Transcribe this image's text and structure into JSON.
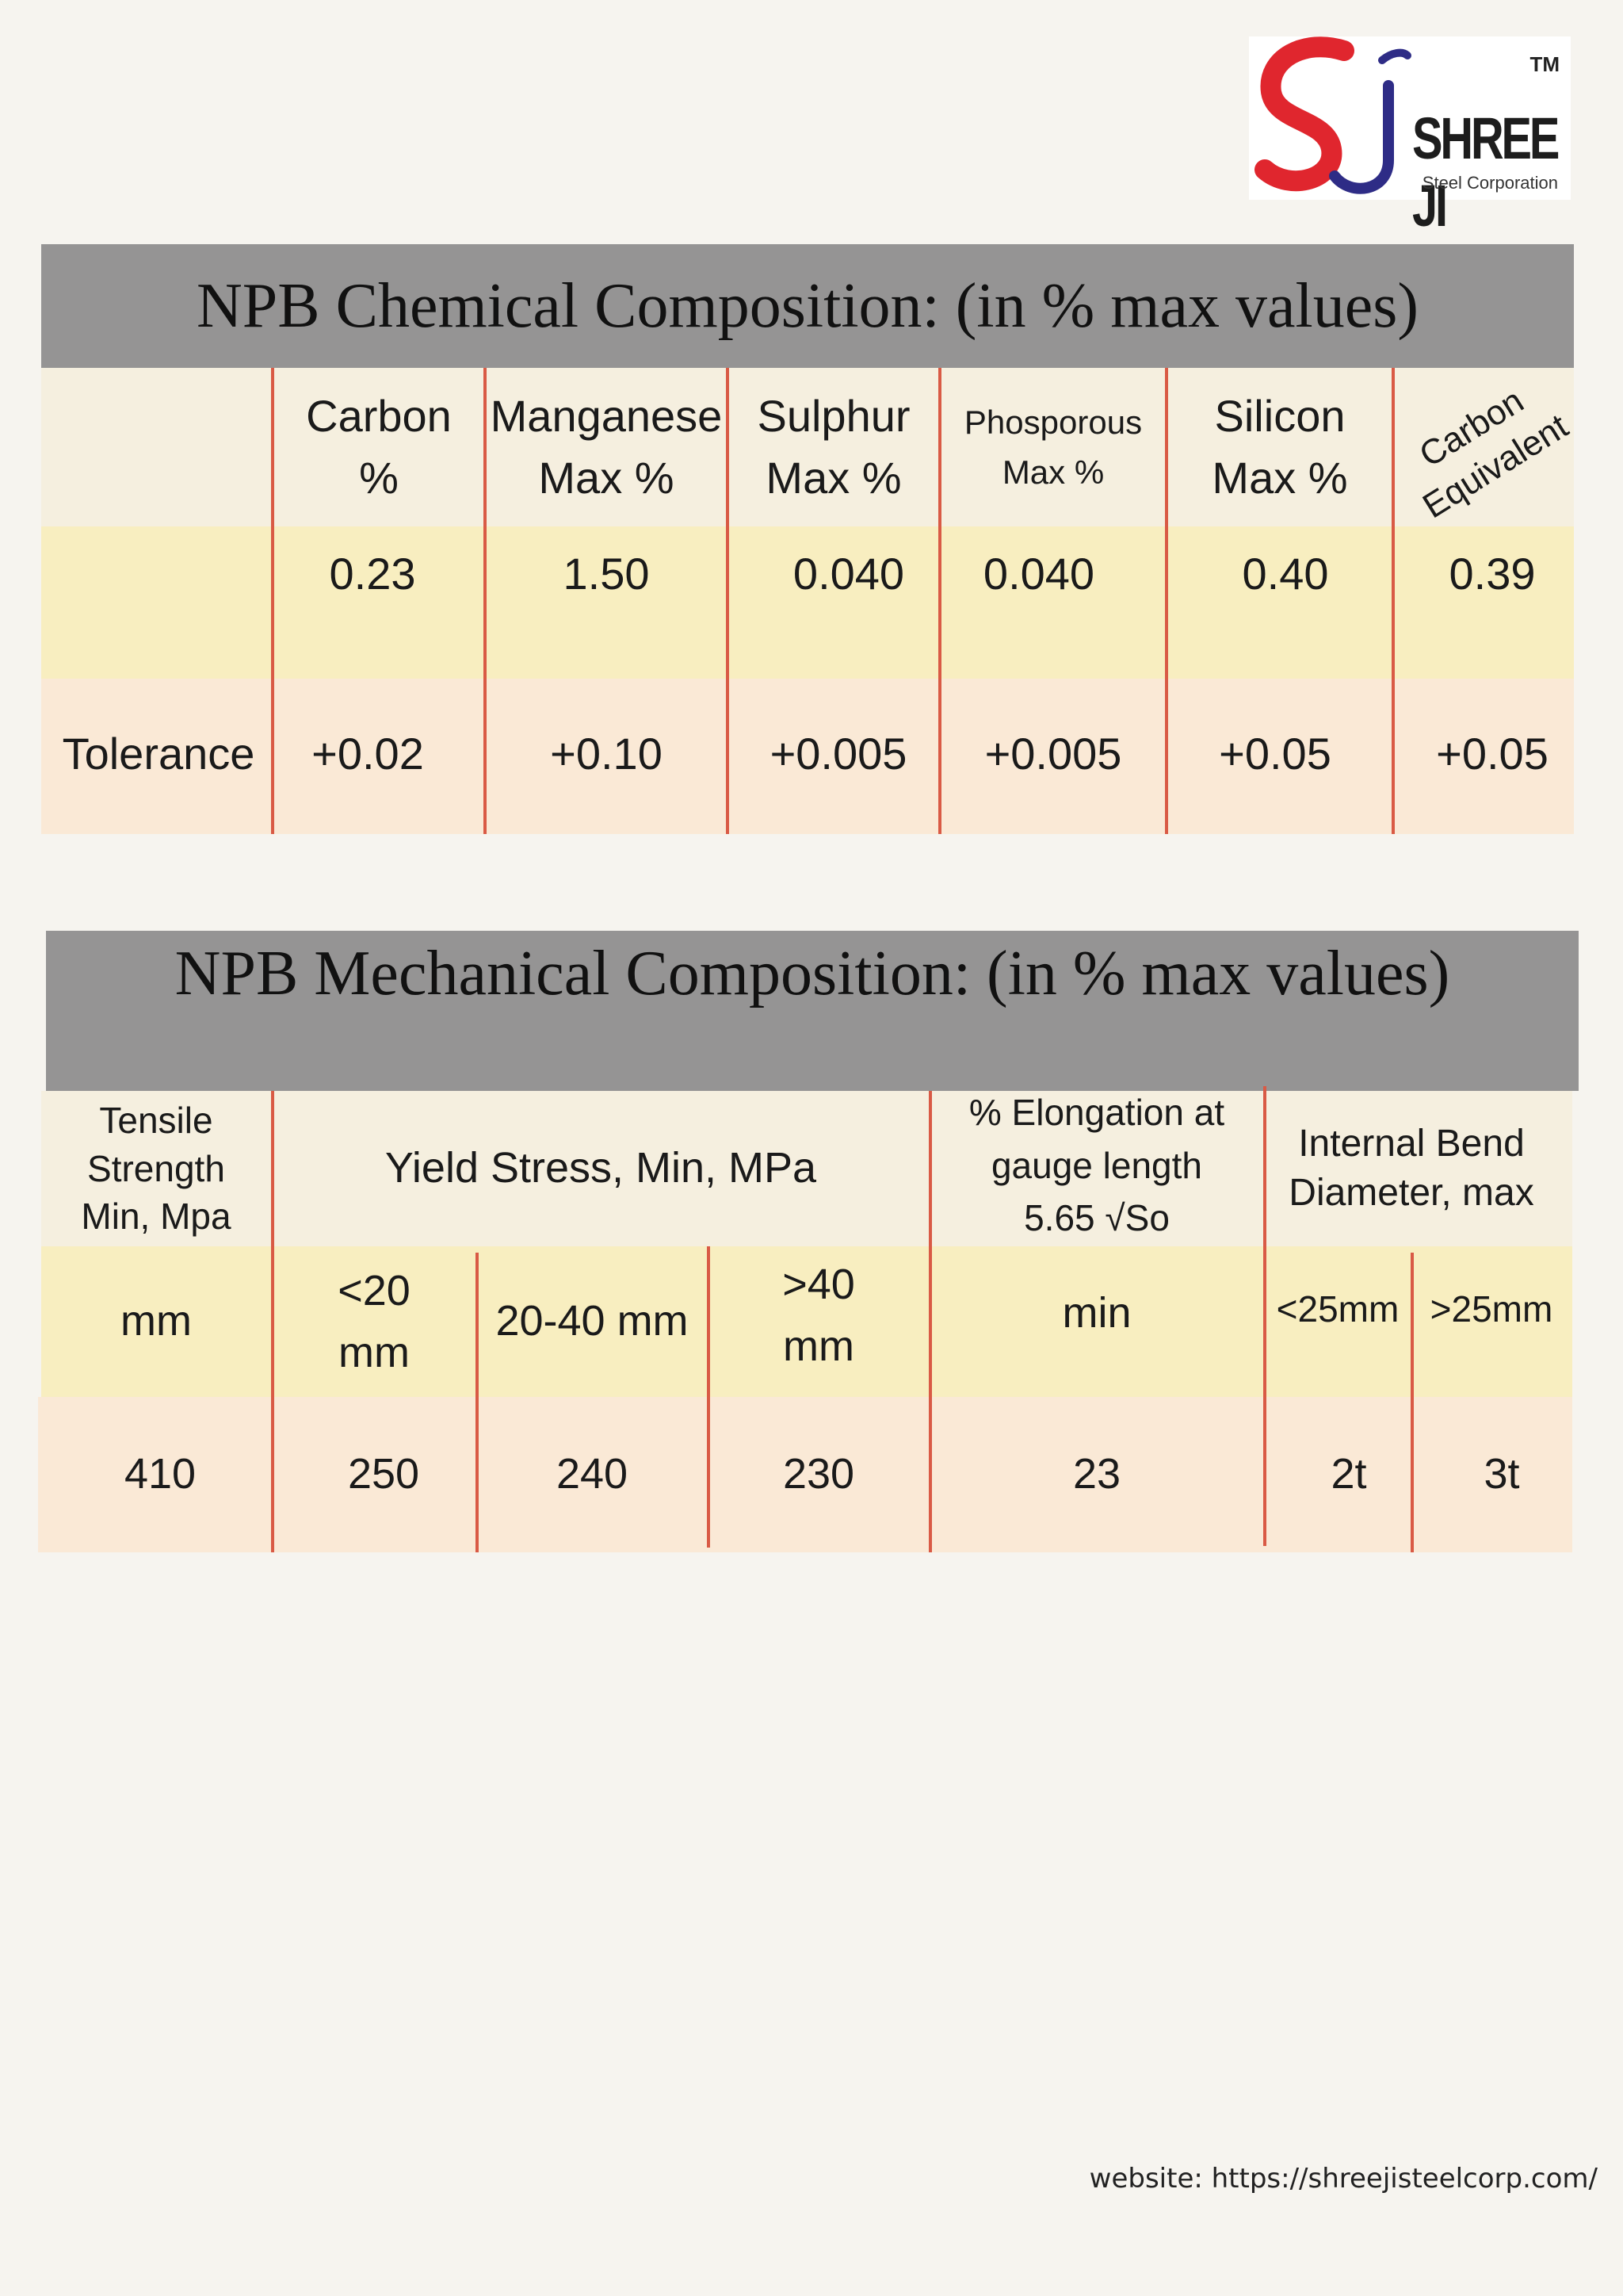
{
  "logo": {
    "mark_alt": "SJ logo mark",
    "tm": "TM",
    "brand": "SHREE JI",
    "subtitle": "Steel Corporation",
    "colors": {
      "s": "#e0262e",
      "j": "#2e2c86"
    }
  },
  "chemical": {
    "title": "NPB Chemical Composition: (in % max values)",
    "headers": [
      "",
      "Carbon\n%",
      "Manganese\nMax %",
      "Sulphur\nMax %",
      "Phosporous\nMax %",
      "Silicon\nMax %",
      "Carbon\nEquivalent"
    ],
    "rows": [
      [
        "",
        "0.23",
        "1.50",
        "0.040",
        "0.040",
        "0.40",
        "0.39"
      ],
      [
        "Tolerance",
        "+0.02",
        "+0.10",
        "+0.005",
        "+0.005",
        "+0.05",
        "+0.05"
      ]
    ]
  },
  "mechanical": {
    "title": "NPB Mechanical Composition: (in % max values)",
    "header": {
      "tensile": "Tensile\nStrength\nMin, Mpa",
      "yield": "Yield Stress, Min, MPa",
      "elongation": "% Elongation at\ngauge length\n5.65 √So",
      "bend": "Internal Bend\nDiameter, max"
    },
    "subheader": [
      "mm",
      "<20\nmm",
      "20-40 mm",
      ">40\nmm",
      "min",
      "<25mm",
      ">25mm"
    ],
    "values": [
      "410",
      "250",
      "240",
      "230",
      "23",
      "2t",
      "3t"
    ]
  },
  "footer": {
    "website": "website: https://shreejisteelcorp.com/"
  },
  "colors": {
    "title_bar": "#959494",
    "header_row": "#f5efdf",
    "value_row": "#f8eec0",
    "tolerance_row": "#fae9d6",
    "divider": "#d95a45",
    "page": "#f6f4ef"
  }
}
